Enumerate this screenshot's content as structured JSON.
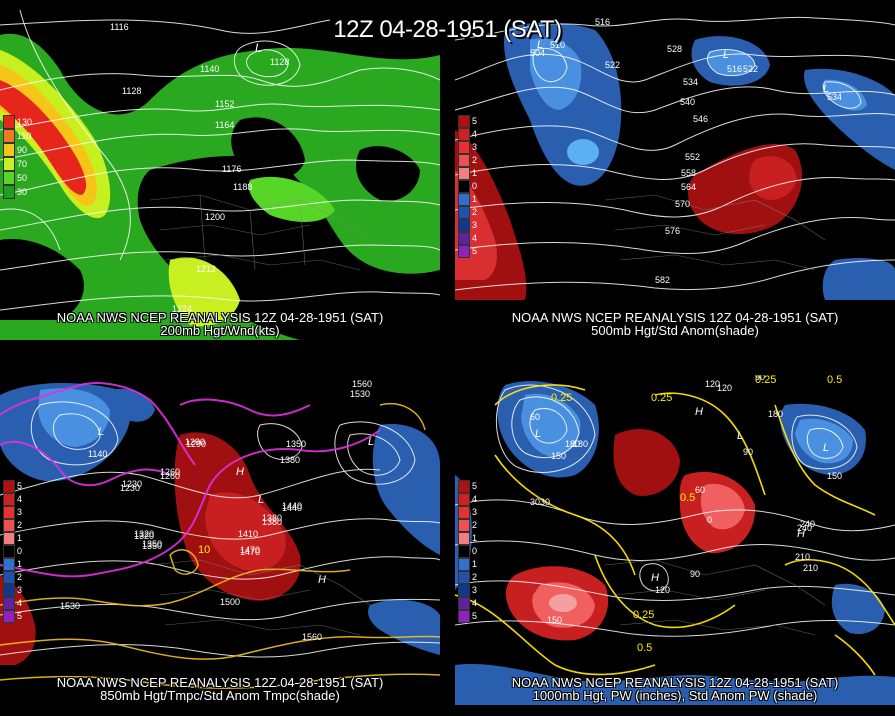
{
  "title": "12Z 04-28-1951 (SAT)",
  "colors": {
    "background": "#000000",
    "contour": "#ffffff",
    "pw_contour": "#ffe600",
    "temp_contour": "#e030e0"
  },
  "panels": [
    {
      "id": "p1",
      "caption_line1": "NOAA NWS NCEP REANALYSIS 12Z 04-28-1951 (SAT)",
      "caption_line2": "200mb Hgt/Wnd(kts)",
      "legend": [
        {
          "color": "#e6261a",
          "label": "130"
        },
        {
          "color": "#f07820",
          "label": "110"
        },
        {
          "color": "#f5c518",
          "label": "90"
        },
        {
          "color": "#c8f020",
          "label": "70"
        },
        {
          "color": "#58d628",
          "label": "50"
        },
        {
          "color": "#1f9e1f",
          "label": "30"
        }
      ],
      "contour_labels": [
        "1116",
        "1128",
        "1140",
        "1152",
        "1164",
        "1176",
        "1188",
        "1200",
        "1212",
        "1224",
        "1128"
      ],
      "lows": [
        "L"
      ]
    },
    {
      "id": "p2",
      "caption_line1": "NOAA NWS NCEP REANALYSIS 12Z 04-28-1951 (SAT)",
      "caption_line2": "500mb Hgt/Std Anom(shade)",
      "legend": [
        {
          "color": "#b01010",
          "label": "5"
        },
        {
          "color": "#d02020",
          "label": "4"
        },
        {
          "color": "#e83030",
          "label": "3"
        },
        {
          "color": "#f05050",
          "label": "2"
        },
        {
          "color": "#f08080",
          "label": "1"
        },
        {
          "color": "#000000",
          "label": "0"
        },
        {
          "color": "#3070d0",
          "label": "1"
        },
        {
          "color": "#2050b0",
          "label": "2"
        },
        {
          "color": "#103890",
          "label": "3"
        },
        {
          "color": "#6020a0",
          "label": "4"
        },
        {
          "color": "#9020c0",
          "label": "5"
        }
      ],
      "contour_labels": [
        "516",
        "510",
        "504",
        "522",
        "528",
        "516",
        "522",
        "534",
        "534",
        "540",
        "546",
        "552",
        "558",
        "564",
        "570",
        "576",
        "582"
      ],
      "lows": [
        "L",
        "L",
        "L"
      ]
    },
    {
      "id": "p3",
      "caption_line1": "NOAA NWS NCEP REANALYSIS 12Z 04-28-1951 (SAT)",
      "caption_line2": "850mb Hgt/Tmpc/Std Anom Tmpc(shade)",
      "contour_labels": [
        "1140",
        "1230",
        "1260",
        "1290",
        "1320",
        "1350",
        "1380",
        "1410",
        "1440",
        "1470",
        "1500",
        "1530",
        "1560",
        "1560",
        "1530",
        "1350",
        "1380",
        "1290",
        "1260",
        "1230",
        "1470",
        "1440",
        "1380",
        "1350",
        "1320"
      ],
      "temp_labels": [
        "10"
      ],
      "lows": [
        "L",
        "L",
        "L"
      ],
      "highs": [
        "H",
        "H"
      ]
    },
    {
      "id": "p4",
      "caption_line1": "NOAA NWS NCEP REANALYSIS 12Z 04-28-1951 (SAT)",
      "caption_line2": "1000mb Hgt, PW (inches), Std Anom PW (shade)",
      "contour_labels": [
        "30",
        "60",
        "90",
        "120",
        "150",
        "180",
        "210",
        "240",
        "270",
        "30",
        "90",
        "120",
        "150",
        "180",
        "0",
        "30",
        "60",
        "90",
        "120",
        "150",
        "180",
        "210",
        "240"
      ],
      "pw_labels": [
        "0.25",
        "0.25",
        "0.25",
        "0.5",
        "0.5",
        "0.25",
        "0.5"
      ],
      "lows": [
        "L",
        "L",
        "L"
      ],
      "highs": [
        "H",
        "H",
        "H"
      ]
    }
  ]
}
